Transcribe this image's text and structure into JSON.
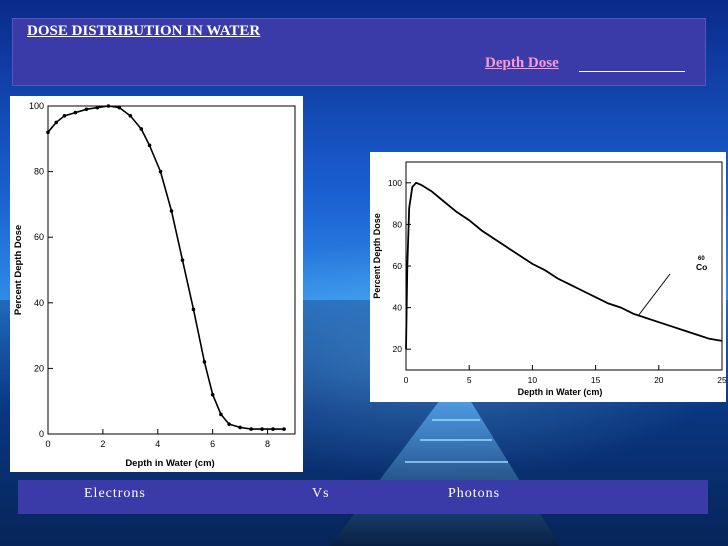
{
  "header": {
    "title": "DOSE DISTRIBUTION IN WATER ",
    "subtitle": "Depth Dose"
  },
  "captions": {
    "left": "Electrons",
    "middle": "Vs",
    "right": "Photons"
  },
  "chart_data": [
    {
      "type": "line",
      "xlabel": "Depth in Water (cm)",
      "ylabel": "Percent Depth Dose",
      "xlim": [
        0,
        9
      ],
      "ylim": [
        0,
        100
      ],
      "xticks": [
        0,
        2,
        4,
        6,
        8
      ],
      "yticks": [
        0,
        20,
        40,
        60,
        80,
        100
      ],
      "series": [
        {
          "x": [
            0,
            0.3,
            0.6,
            1.0,
            1.4,
            1.8,
            2.2,
            2.6,
            3.0,
            3.4,
            3.7,
            4.1,
            4.5,
            4.9,
            5.3,
            5.7,
            6.0,
            6.3,
            6.6,
            7.0,
            7.4,
            7.8,
            8.2,
            8.6
          ],
          "y": [
            92,
            95,
            97,
            98,
            99,
            99.5,
            100,
            99.5,
            97,
            93,
            88,
            80,
            68,
            53,
            38,
            22,
            12,
            6,
            3,
            2,
            1.5,
            1.5,
            1.5,
            1.5
          ]
        }
      ]
    },
    {
      "type": "line",
      "xlabel": "Depth in Water (cm)",
      "ylabel": "Percent Depth Dose",
      "xlim": [
        0,
        25
      ],
      "ylim": [
        10,
        110
      ],
      "xticks": [
        0,
        5,
        10,
        15,
        20,
        25
      ],
      "yticks": [
        20,
        40,
        60,
        80,
        100
      ],
      "annotation": {
        "text": "Co",
        "superscript": "60"
      },
      "series": [
        {
          "x": [
            0,
            0.1,
            0.25,
            0.5,
            0.8,
            1.2,
            2,
            3,
            4,
            5,
            6,
            7,
            8,
            9,
            10,
            11,
            12,
            13,
            14,
            15,
            16,
            17,
            18,
            19,
            20,
            21,
            22,
            23,
            24,
            25
          ],
          "y": [
            20,
            60,
            88,
            98,
            100,
            99,
            96,
            91,
            86,
            82,
            77,
            73,
            69,
            65,
            61,
            58,
            54,
            51,
            48,
            45,
            42,
            40,
            37,
            35,
            33,
            31,
            29,
            27,
            25,
            24
          ]
        }
      ]
    }
  ]
}
